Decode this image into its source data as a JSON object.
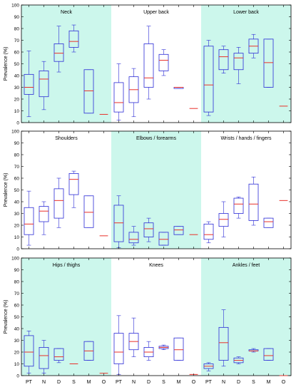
{
  "chart_data": {
    "type": "box",
    "categories": [
      "PT",
      "N",
      "D",
      "S",
      "M",
      "O"
    ],
    "ylabel": "Prevalence (%)",
    "ylim": [
      0,
      100
    ],
    "yticks": [
      0,
      10,
      20,
      30,
      40,
      50,
      60,
      70,
      80,
      90,
      100
    ],
    "grid": false,
    "colors": {
      "shaded": "#ccf7ec",
      "box": "#2b2bd6",
      "median": "#e8302a",
      "frame": "#000000"
    },
    "rows": [
      {
        "regions": [
          {
            "title": "Neck",
            "shaded": true,
            "boxes": [
              {
                "category": "PT",
                "min": 5,
                "q1": 24,
                "median": 30,
                "q3": 41,
                "max": 61
              },
              {
                "category": "N",
                "min": 11,
                "q1": 22,
                "median": 37,
                "q3": 44,
                "max": 52
              },
              {
                "category": "D",
                "min": 43,
                "q1": 52,
                "median": 59,
                "q3": 67,
                "max": 82
              },
              {
                "category": "S",
                "min": 60,
                "q1": 64,
                "median": 69,
                "q3": 78,
                "max": 83
              },
              {
                "category": "M",
                "min": 8,
                "q1": 8,
                "median": 27,
                "q3": 45,
                "max": 45
              },
              {
                "category": "O",
                "min": 7,
                "q1": 7,
                "median": 7,
                "q3": 7,
                "max": 7
              }
            ]
          },
          {
            "title": "Upper back",
            "shaded": false,
            "boxes": [
              {
                "category": "PT",
                "min": 2,
                "q1": 9,
                "median": 17,
                "q3": 34,
                "max": 50
              },
              {
                "category": "N",
                "min": 5,
                "q1": 17,
                "median": 28,
                "q3": 39,
                "max": 46
              },
              {
                "category": "D",
                "min": 20,
                "q1": 30,
                "median": 38,
                "q3": 67,
                "max": 82
              },
              {
                "category": "S",
                "min": 40,
                "q1": 44,
                "median": 53,
                "q3": 58,
                "max": 62
              },
              {
                "category": "M",
                "min": 29,
                "q1": 29,
                "median": 30,
                "q3": 30,
                "max": 30
              },
              {
                "category": "O",
                "min": 12,
                "q1": 12,
                "median": 12,
                "q3": 12,
                "max": 12
              }
            ]
          },
          {
            "title": "Lower back",
            "shaded": true,
            "boxes": [
              {
                "category": "PT",
                "min": 6,
                "q1": 9,
                "median": 32,
                "q3": 65,
                "max": 70
              },
              {
                "category": "N",
                "min": 42,
                "q1": 45,
                "median": 56,
                "q3": 62,
                "max": 65
              },
              {
                "category": "D",
                "min": 33,
                "q1": 45,
                "median": 55,
                "q3": 59,
                "max": 64
              },
              {
                "category": "S",
                "min": 55,
                "q1": 59,
                "median": 65,
                "q3": 71,
                "max": 75
              },
              {
                "category": "M",
                "min": 30,
                "q1": 30,
                "median": 51,
                "q3": 71,
                "max": 71
              },
              {
                "category": "O",
                "min": 14,
                "q1": 14,
                "median": 14,
                "q3": 14,
                "max": 14
              }
            ]
          }
        ]
      },
      {
        "regions": [
          {
            "title": "Shoulders",
            "shaded": false,
            "boxes": [
              {
                "category": "PT",
                "min": 3,
                "q1": 12,
                "median": 21,
                "q3": 35,
                "max": 49
              },
              {
                "category": "N",
                "min": 12,
                "q1": 23,
                "median": 32,
                "q3": 36,
                "max": 40
              },
              {
                "category": "D",
                "min": 18,
                "q1": 26,
                "median": 41,
                "q3": 51,
                "max": 60
              },
              {
                "category": "S",
                "min": 35,
                "q1": 46,
                "median": 59,
                "q3": 64,
                "max": 66
              },
              {
                "category": "M",
                "min": 18,
                "q1": 18,
                "median": 31,
                "q3": 45,
                "max": 45
              },
              {
                "category": "O",
                "min": 11,
                "q1": 11,
                "median": 11,
                "q3": 11,
                "max": 11
              }
            ]
          },
          {
            "title": "Elbows / forearms",
            "shaded": true,
            "boxes": [
              {
                "category": "PT",
                "min": 1,
                "q1": 6,
                "median": 22,
                "q3": 37,
                "max": 45
              },
              {
                "category": "N",
                "min": 3,
                "q1": 5,
                "median": 8,
                "q3": 14,
                "max": 19
              },
              {
                "category": "D",
                "min": 6,
                "q1": 10,
                "median": 17,
                "q3": 22,
                "max": 26
              },
              {
                "category": "S",
                "min": 3,
                "q1": 3,
                "median": 8,
                "q3": 14,
                "max": 14
              },
              {
                "category": "M",
                "min": 12,
                "q1": 12,
                "median": 16,
                "q3": 19,
                "max": 19
              },
              {
                "category": "O",
                "min": 12,
                "q1": 12,
                "median": 12,
                "q3": 12,
                "max": 12
              }
            ]
          },
          {
            "title": "Wrists / hands / fingers",
            "shaded": false,
            "boxes": [
              {
                "category": "PT",
                "min": 5,
                "q1": 8,
                "median": 12,
                "q3": 21,
                "max": 23
              },
              {
                "category": "N",
                "min": 10,
                "q1": 19,
                "median": 25,
                "q3": 30,
                "max": 40
              },
              {
                "category": "D",
                "min": 26,
                "q1": 30,
                "median": 38,
                "q3": 43,
                "max": 44
              },
              {
                "category": "S",
                "min": 20,
                "q1": 24,
                "median": 38,
                "q3": 55,
                "max": 61
              },
              {
                "category": "M",
                "min": 18,
                "q1": 18,
                "median": 23,
                "q3": 26,
                "max": 26
              },
              {
                "category": "O",
                "min": 41,
                "q1": 41,
                "median": 41,
                "q3": 41,
                "max": 41
              }
            ]
          }
        ]
      },
      {
        "regions": [
          {
            "title": "Hips / thighs",
            "shaded": true,
            "boxes": [
              {
                "category": "PT",
                "min": 2,
                "q1": 8,
                "median": 20,
                "q3": 34,
                "max": 38
              },
              {
                "category": "N",
                "min": 2,
                "q1": 6,
                "median": 17,
                "q3": 24,
                "max": 30
              },
              {
                "category": "D",
                "min": 11,
                "q1": 13,
                "median": 16,
                "q3": 23,
                "max": 23
              },
              {
                "category": "S",
                "min": 10,
                "q1": 10,
                "median": 10,
                "q3": 10,
                "max": 10
              },
              {
                "category": "M",
                "min": 13,
                "q1": 13,
                "median": 21,
                "q3": 29,
                "max": 29
              },
              {
                "category": "O",
                "min": 2,
                "q1": 2,
                "median": 2,
                "q3": 2,
                "max": 2
              }
            ]
          },
          {
            "title": "Knees",
            "shaded": false,
            "boxes": [
              {
                "category": "PT",
                "min": 1,
                "q1": 10,
                "median": 20,
                "q3": 36,
                "max": 51
              },
              {
                "category": "N",
                "min": 16,
                "q1": 22,
                "median": 29,
                "q3": 36,
                "max": 49
              },
              {
                "category": "D",
                "min": 13,
                "q1": 16,
                "median": 20,
                "q3": 24,
                "max": 29
              },
              {
                "category": "S",
                "min": 22,
                "q1": 23,
                "median": 24,
                "q3": 25,
                "max": 26
              },
              {
                "category": "M",
                "min": 13,
                "q1": 13,
                "median": 22,
                "q3": 32,
                "max": 32
              },
              {
                "category": "O",
                "min": 1,
                "q1": 1,
                "median": 1,
                "q3": 1,
                "max": 1
              }
            ]
          },
          {
            "title": "Ankles / feet",
            "shaded": true,
            "boxes": [
              {
                "category": "PT",
                "min": 4,
                "q1": 6,
                "median": 8,
                "q3": 10,
                "max": 11
              },
              {
                "category": "N",
                "min": 8,
                "q1": 13,
                "median": 28,
                "q3": 41,
                "max": 56
              },
              {
                "category": "D",
                "min": 10,
                "q1": 11,
                "median": 13,
                "q3": 15,
                "max": 16
              },
              {
                "category": "S",
                "min": 20,
                "q1": 21,
                "median": 21,
                "q3": 22,
                "max": 23
              },
              {
                "category": "M",
                "min": 13,
                "q1": 13,
                "median": 17,
                "q3": 23,
                "max": 23
              },
              {
                "category": "O",
                "min": 0,
                "q1": 0,
                "median": 0,
                "q3": 0,
                "max": 0
              }
            ]
          }
        ]
      }
    ]
  }
}
